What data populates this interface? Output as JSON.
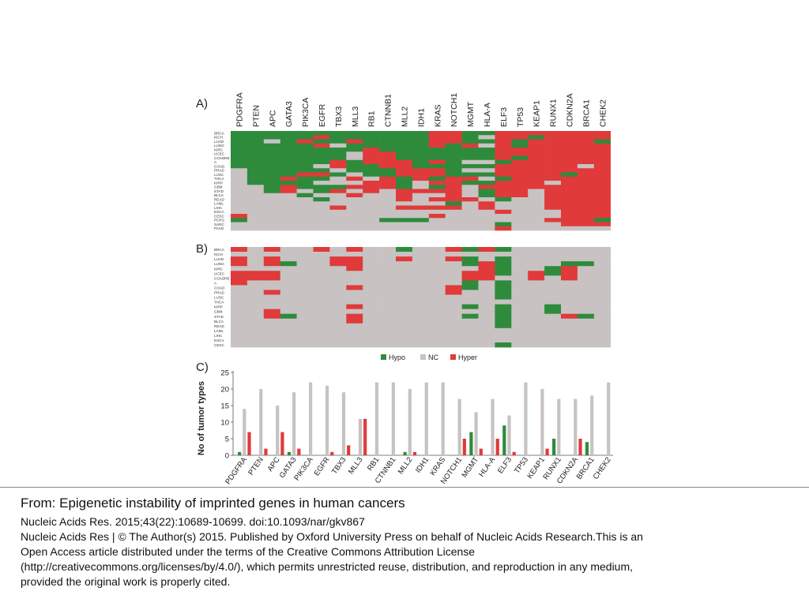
{
  "figure": {
    "genes": [
      "PDGFRA",
      "PTEN",
      "APC",
      "GATA3",
      "PIK3CA",
      "EGFR",
      "TBX3",
      "MLL3",
      "RB1",
      "CTNNB1",
      "MLL2",
      "IDH1",
      "KRAS",
      "NOTCH1",
      "MGMT",
      "HLA-A",
      "ELF3",
      "TP53",
      "KEAP1",
      "RUNX1",
      "CDKN2A",
      "BRCA1",
      "CHEK2"
    ],
    "tumors": [
      "BRCA",
      "KICH",
      "LUAD",
      "LUNG",
      "KIRC",
      "UCEC",
      "COADRE",
      "A",
      "COAD",
      "PRAD",
      "LUSC",
      "THCA",
      "KIRP",
      "GBM",
      "STAD",
      "BLCA",
      "READ",
      "LAML",
      "LIHC",
      "ESCA",
      "CESC",
      "PCPG",
      "SARC",
      "PAAD"
    ],
    "colors": {
      "hypo": "#2e8b3c",
      "nc": "#c8c2c2",
      "hyper": "#e03a3a"
    },
    "panel_a": {
      "label": "A)",
      "matrix": [
        "GGGGGGGGGGGGRRGGRRRRRRR",
        "GGGGGRGGGGGGRRGNRRGRRRR",
        "GGNGRGGRGGGGRRGGRGRRRRG",
        "GGGGGRNGGGGGRGRNRGRRRRR",
        "GGGGGGGGRGGGGGGGRRRRRRR",
        "GGGGGGGNRRGGGGGGRRRRRRR",
        "GGGGGGGNRRGGGGGGRGRRRRR",
        "GGGGGGRGRRRGRGNNGRRRRRR",
        "GGGGGNRGGRRGGGGGRRRRRNR",
        "NGGGGGNGGGRRRGNNRRRRRRR",
        "NGGGRRGNGGRRRGGGRRRRGRR",
        "NGGRGGNRNRGRGRRNGRRRRRR",
        "NGGGGNNNRRGNRRGGRRRNRRR",
        "NNGRGGGRRRGNGRNRRRRRRRR",
        "NNGRNGRNRNRRRRNGRRNRRRR",
        "NNNNGNNRNNRNNRNGRRNRRRR",
        "NNNNNGNNNNRNRRRNGNNRRRR",
        "NNNNNNNNNNNNNGNRNNNRRRR",
        "NNNNNNRNNNRRRRNRNNNRRRR",
        "NNNNNNNNNNNNNNNNRNNNRRR",
        "RNNNNNNNNNNNRNNNNNNNRRR",
        "GNNNNNNNNGGGNNNNNNNRRRG",
        "NNNNNNNNNNNNNNNNGNNNRRR",
        "NNNNNNNNNNNNNNNNRNNNNNN"
      ]
    },
    "panel_b": {
      "label": "B)",
      "matrix": [
        "RNRNNRNRNNGNNRGRGNNNNNN",
        "NNNNNNNNNNNNNNNNNNNNNNN",
        "RNRNNNRRNNRNNRGNGNNNNNN",
        "RNRGNNRRNNNNNNGRGNNNGGN",
        "NNNNNNNRNNNNNNNRGNNGRNN",
        "RRRNNNNNNNNNNNRRGNRGRNN",
        "RRRNNNNNNNNNNNRRNNRNRNN",
        "RNNNNNNNNNNNNNGNGNNNNNN",
        "NNNNNNNRNNNNNRGNGNNNNNN",
        "NNRNNNNNNNNNNRNNGNNNNNN",
        "NNNNNNNNNNNNNNNNGNNNNNN",
        "NNNNNNNNNNNNNNNNNNNNNNN",
        "NNNNNNNRNNNNNNGNGNNGNNN",
        "NNRNNNNNNNNNNNNNGNNGNNN",
        "NNRGNNNRNNNNNNGNGNNNRGN",
        "NNNNNNNRNNNNNNNNGNNNNNN",
        "NNNNNNNNNNNNNNNNGNNNNNN",
        "NNNNNNNNNNNNNNNNNNNNNNN",
        "NNNNNNNNNNNNNNNNNNNNNNN",
        "NNNNNNNNNNNNNNNNNNNNNNN",
        "NNNNNNNNNNNNNNNNGNNNNNN"
      ]
    }
  },
  "chart_data": {
    "type": "bar",
    "label": "C)",
    "categories": [
      "PDGFRA",
      "PTEN",
      "APC",
      "GATA3",
      "PIK3CA",
      "EGFR",
      "TBX3",
      "MLL3",
      "RB1",
      "CTNNB1",
      "MLL2",
      "IDH1",
      "KRAS",
      "NOTCH1",
      "MGMT",
      "HLA-A",
      "ELF3",
      "TP53",
      "KEAP1",
      "RUNX1",
      "CDKN2A",
      "BRCA1",
      "CHEK2"
    ],
    "series": [
      {
        "name": "Hypo",
        "color": "#2e8b3c",
        "values": [
          1,
          0,
          0,
          1,
          0,
          0,
          0,
          0,
          0,
          0,
          1,
          0,
          0,
          0,
          7,
          0,
          9,
          0,
          0,
          5,
          0,
          4,
          0
        ]
      },
      {
        "name": "NC",
        "color": "#c8c2c2",
        "values": [
          14,
          20,
          15,
          19,
          22,
          21,
          19,
          11,
          22,
          22,
          20,
          22,
          22,
          17,
          13,
          17,
          12,
          22,
          20,
          17,
          17,
          18,
          22
        ]
      },
      {
        "name": "Hyper",
        "color": "#e03a3a",
        "values": [
          7,
          2,
          7,
          2,
          0,
          1,
          3,
          11,
          0,
          0,
          1,
          0,
          0,
          5,
          2,
          5,
          1,
          0,
          2,
          0,
          5,
          0,
          0
        ]
      }
    ],
    "ylabel": "No of tumor types",
    "ylim": [
      0,
      25
    ],
    "yticks": [
      0,
      5,
      10,
      15,
      20,
      25
    ],
    "legend": "top-center",
    "grid": false
  },
  "caption": {
    "title": "From: Epigenetic instability of imprinted genes in human cancers",
    "citation": "Nucleic Acids Res. 2015;43(22):10689-10699. doi:10.1093/nar/gkv867",
    "license_1": "Nucleic Acids Res | © The Author(s) 2015. Published by Oxford University Press on behalf of Nucleic Acids Research.This is an",
    "license_2": "Open Access article distributed under the terms of the Creative Commons Attribution License",
    "license_3": "(http://creativecommons.org/licenses/by/4.0/), which permits unrestricted reuse, distribution, and reproduction in any medium,",
    "license_4": "provided the original work is properly cited."
  }
}
